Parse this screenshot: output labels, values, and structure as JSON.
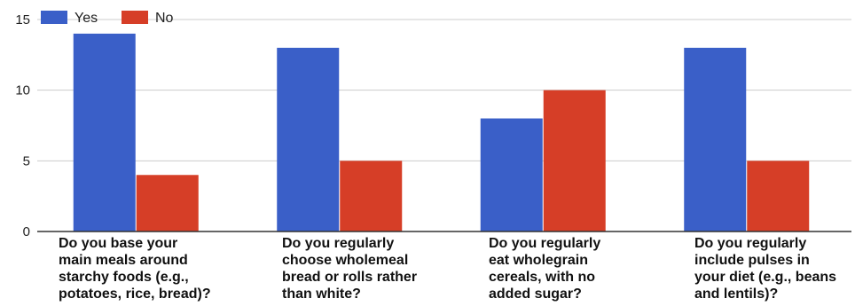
{
  "chart_data": {
    "type": "bar",
    "categories": [
      [
        "Do you base your",
        "main meals around",
        "starchy foods (e.g.,",
        "potatoes, rice, bread)?"
      ],
      [
        "Do you regularly",
        "choose wholemeal",
        "bread or rolls rather",
        "than white?"
      ],
      [
        "Do you regularly",
        "eat wholegrain",
        "cereals, with no",
        "added sugar?"
      ],
      [
        "Do you regularly",
        "include pulses in",
        "your diet (e.g., beans",
        "and lentils)?"
      ]
    ],
    "series": [
      {
        "name": "Yes",
        "color": "#3A5FC8",
        "values": [
          14,
          13,
          8,
          13
        ]
      },
      {
        "name": "No",
        "color": "#D63E27",
        "values": [
          4,
          5,
          10,
          5
        ]
      }
    ],
    "ylim": [
      0,
      15
    ],
    "yticks": [
      "0",
      "5",
      "10",
      "15"
    ],
    "grid": true,
    "legend": "top-left"
  }
}
